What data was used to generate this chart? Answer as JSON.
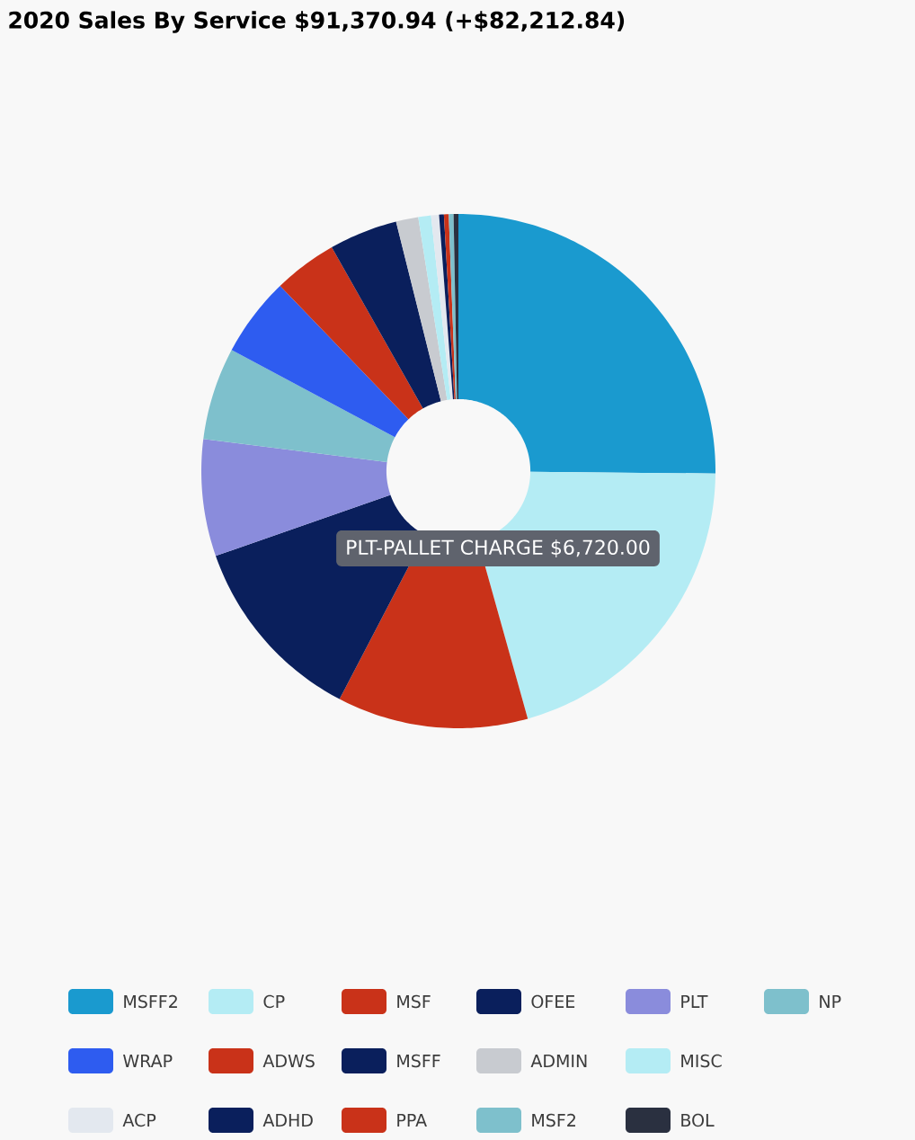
{
  "chart_data": {
    "type": "donut",
    "title": "2020 Sales By Service $91,370.94 (+$82,212.84)",
    "categories": [
      "MSFF2",
      "CP",
      "MSF",
      "OFEE",
      "PLT",
      "NP",
      "WRAP",
      "ADWS",
      "MSFF",
      "ADMIN",
      "MISC",
      "ACP",
      "ADHD",
      "PPA",
      "MSF2",
      "BOL"
    ],
    "values": [
      25.15,
      20.5,
      12,
      12,
      7.35,
      5.8,
      5,
      4,
      4.3,
      1.4,
      0.8,
      0.5,
      0.3,
      0.3,
      0.3,
      0.3
    ],
    "colors": [
      "#1a9acf",
      "#b4ecf4",
      "#c93219",
      "#0a1f5c",
      "#8a8cdc",
      "#7ec0cc",
      "#2e5cf0",
      "#c93219",
      "#0a1f5c",
      "#c8cbd0",
      "#b4ecf4",
      "#e3e8ef",
      "#0a1f5c",
      "#c93219",
      "#7ec0cc",
      "#2a3040"
    ],
    "annotations": [
      "PLT-PALLET CHARGE $6,720.00"
    ],
    "legend": "bottom"
  }
}
